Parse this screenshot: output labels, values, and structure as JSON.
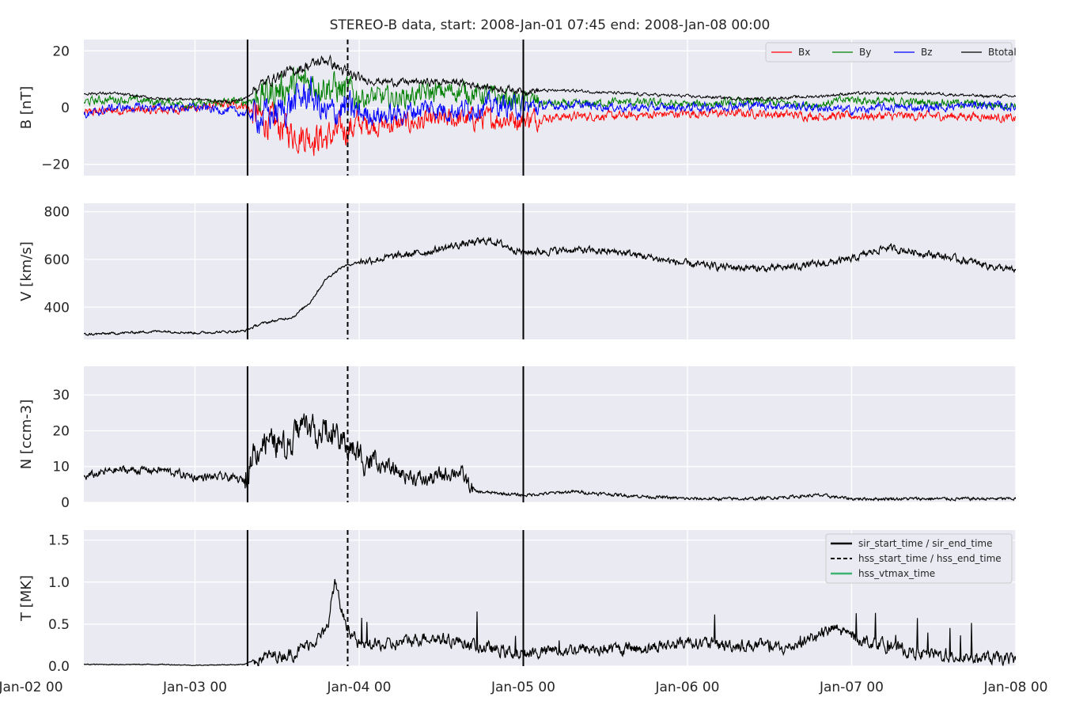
{
  "title": "STEREO-B data, start: 2008-Jan-01 07:45  end: 2008-Jan-08 00:00",
  "chart_data": {
    "type": "line",
    "x_unit": "days since 2008-Jan-01 00:00",
    "xlim": [
      1.3229,
      7.0
    ],
    "x_ticks": [
      {
        "x": 1,
        "label": "Jan-02 00"
      },
      {
        "x": 2,
        "label": "Jan-03 00"
      },
      {
        "x": 3,
        "label": "Jan-04 00"
      },
      {
        "x": 4,
        "label": "Jan-05 00"
      },
      {
        "x": 5,
        "label": "Jan-06 00"
      },
      {
        "x": 6,
        "label": "Jan-07 00"
      },
      {
        "x": 7,
        "label": "Jan-08 00"
      }
    ],
    "events": {
      "sir_start": 2.32,
      "hss_start": 2.93,
      "sir_end": 4.0
    },
    "grid": true,
    "panels": [
      {
        "id": "B",
        "ylabel": "B [nT]",
        "ylim": [
          -24,
          24
        ],
        "yticks": [
          -20,
          0,
          20
        ],
        "yticklabels": [
          "−20",
          "0",
          "20"
        ],
        "legend": "top-right",
        "series": [
          {
            "name": "Bx",
            "color": "#ff0000",
            "x": [
              1.32,
              1.5,
              1.8,
              2.0,
              2.2,
              2.3,
              2.4,
              2.5,
              2.6,
              2.7,
              2.8,
              2.9,
              3.0,
              3.2,
              3.4,
              3.6,
              3.8,
              4.0,
              4.3,
              4.6,
              5.0,
              5.4,
              5.8,
              6.0,
              6.2,
              6.5,
              6.8,
              7.0
            ],
            "y": [
              -2,
              -1,
              -1,
              0,
              1,
              1,
              -4,
              -6,
              -9,
              -10,
              -11,
              -8,
              -6,
              -6,
              -5,
              -4,
              -4,
              -4,
              -3,
              -3,
              -2,
              -2,
              -3,
              -3,
              -3,
              -3,
              -3,
              -4
            ]
          },
          {
            "name": "By",
            "color": "#008000",
            "x": [
              1.32,
              1.5,
              1.8,
              2.0,
              2.2,
              2.3,
              2.4,
              2.5,
              2.6,
              2.7,
              2.8,
              2.9,
              3.0,
              3.2,
              3.4,
              3.6,
              3.8,
              4.0,
              4.3,
              4.6,
              5.0,
              5.4,
              5.8,
              6.0,
              6.2,
              6.5,
              6.8,
              7.0
            ],
            "y": [
              2,
              3,
              2,
              1,
              2,
              2,
              4,
              6,
              8,
              9,
              8,
              6,
              4,
              3,
              5,
              6,
              4,
              2,
              1,
              2,
              1,
              2,
              1,
              3,
              2,
              2,
              1,
              1
            ]
          },
          {
            "name": "Bz",
            "color": "#0000ff",
            "x": [
              1.32,
              1.5,
              1.8,
              2.0,
              2.2,
              2.3,
              2.4,
              2.5,
              2.6,
              2.7,
              2.8,
              2.9,
              3.0,
              3.2,
              3.4,
              3.6,
              3.8,
              4.0,
              4.3,
              4.6,
              5.0,
              5.4,
              5.8,
              6.0,
              6.2,
              6.5,
              6.8,
              7.0
            ],
            "y": [
              -3,
              0,
              0,
              0,
              -1,
              -2,
              -3,
              -2,
              2,
              5,
              -3,
              0,
              -2,
              -3,
              0,
              -1,
              1,
              0,
              1,
              0,
              0,
              1,
              0,
              -1,
              0,
              0,
              1,
              0
            ]
          },
          {
            "name": "Btotal",
            "color": "#000000",
            "x": [
              1.32,
              1.5,
              1.8,
              2.0,
              2.2,
              2.3,
              2.4,
              2.5,
              2.6,
              2.7,
              2.8,
              2.9,
              3.0,
              3.2,
              3.4,
              3.6,
              3.8,
              4.0,
              4.3,
              4.6,
              5.0,
              5.4,
              5.8,
              6.0,
              6.2,
              6.5,
              6.8,
              7.0
            ],
            "y": [
              5,
              5,
              3,
              3,
              2,
              3,
              8,
              11,
              13,
              15,
              17,
              13,
              10,
              9,
              9,
              9,
              7,
              6,
              6,
              5,
              4,
              3,
              4,
              5,
              5,
              5,
              4,
              4
            ]
          }
        ]
      },
      {
        "id": "V",
        "ylabel": "V [km/s]",
        "ylim": [
          265,
          835
        ],
        "yticks": [
          400,
          600,
          800
        ],
        "yticklabels": [
          "400",
          "600",
          "800"
        ],
        "series": [
          {
            "name": "V",
            "color": "#000000",
            "x": [
              1.32,
              1.5,
              1.8,
              2.0,
              2.3,
              2.4,
              2.6,
              2.7,
              2.8,
              2.9,
              3.0,
              3.2,
              3.4,
              3.6,
              3.8,
              4.0,
              4.3,
              4.6,
              5.0,
              5.2,
              5.5,
              5.8,
              6.0,
              6.2,
              6.5,
              6.8,
              7.0
            ],
            "y": [
              285,
              290,
              300,
              292,
              300,
              330,
              360,
              420,
              520,
              570,
              590,
              610,
              630,
              660,
              680,
              630,
              640,
              630,
              580,
              570,
              560,
              580,
              600,
              650,
              620,
              580,
              550
            ]
          }
        ]
      },
      {
        "id": "N",
        "ylabel": "N [ccm-3]",
        "ylim": [
          0,
          38
        ],
        "yticks": [
          0,
          10,
          20,
          30
        ],
        "yticklabels": [
          "0",
          "10",
          "20",
          "30"
        ],
        "series": [
          {
            "name": "N",
            "color": "#000000",
            "x": [
              1.32,
              1.5,
              1.8,
              2.0,
              2.2,
              2.3,
              2.35,
              2.45,
              2.55,
              2.65,
              2.75,
              2.85,
              2.95,
              3.05,
              3.2,
              3.4,
              3.6,
              3.7,
              4.0,
              4.3,
              4.6,
              5.0,
              5.4,
              5.8,
              6.0,
              6.4,
              7.0
            ],
            "y": [
              7,
              9,
              9,
              7,
              7,
              6,
              14,
              18,
              15,
              22,
              20,
              18,
              15,
              12,
              9,
              6,
              9,
              3,
              2,
              3,
              2,
              1,
              1,
              2,
              1,
              1,
              1
            ]
          }
        ]
      },
      {
        "id": "T",
        "ylabel": "T [MK]",
        "ylim": [
          0,
          1.62
        ],
        "yticks": [
          0.0,
          0.5,
          1.0,
          1.5
        ],
        "yticklabels": [
          "0.0",
          "0.5",
          "1.0",
          "1.5"
        ],
        "legend": "top-right",
        "series": [
          {
            "name": "T",
            "color": "#000000",
            "x": [
              1.32,
              1.5,
              1.8,
              2.0,
              2.3,
              2.4,
              2.6,
              2.8,
              2.85,
              2.9,
              2.95,
              3.0,
              3.2,
              3.4,
              3.6,
              3.8,
              4.0,
              4.3,
              4.6,
              4.9,
              5.0,
              5.2,
              5.4,
              5.6,
              5.7,
              5.9,
              6.0,
              6.2,
              6.4,
              7.0
            ],
            "y": [
              0.02,
              0.02,
              0.02,
              0.01,
              0.02,
              0.1,
              0.15,
              0.4,
              1.0,
              0.6,
              0.4,
              0.25,
              0.25,
              0.35,
              0.3,
              0.2,
              0.15,
              0.2,
              0.2,
              0.25,
              0.3,
              0.25,
              0.25,
              0.2,
              0.3,
              0.45,
              0.35,
              0.25,
              0.15,
              0.07
            ]
          }
        ]
      }
    ],
    "legend_items": [
      {
        "label": "sir_start_time / sir_end_time",
        "color": "#000000",
        "style": "solid"
      },
      {
        "label": "hss_start_time / hss_end_time",
        "color": "#000000",
        "style": "dashed"
      },
      {
        "label": "hss_vtmax_time",
        "color": "#3cb371",
        "style": "solid"
      }
    ]
  }
}
